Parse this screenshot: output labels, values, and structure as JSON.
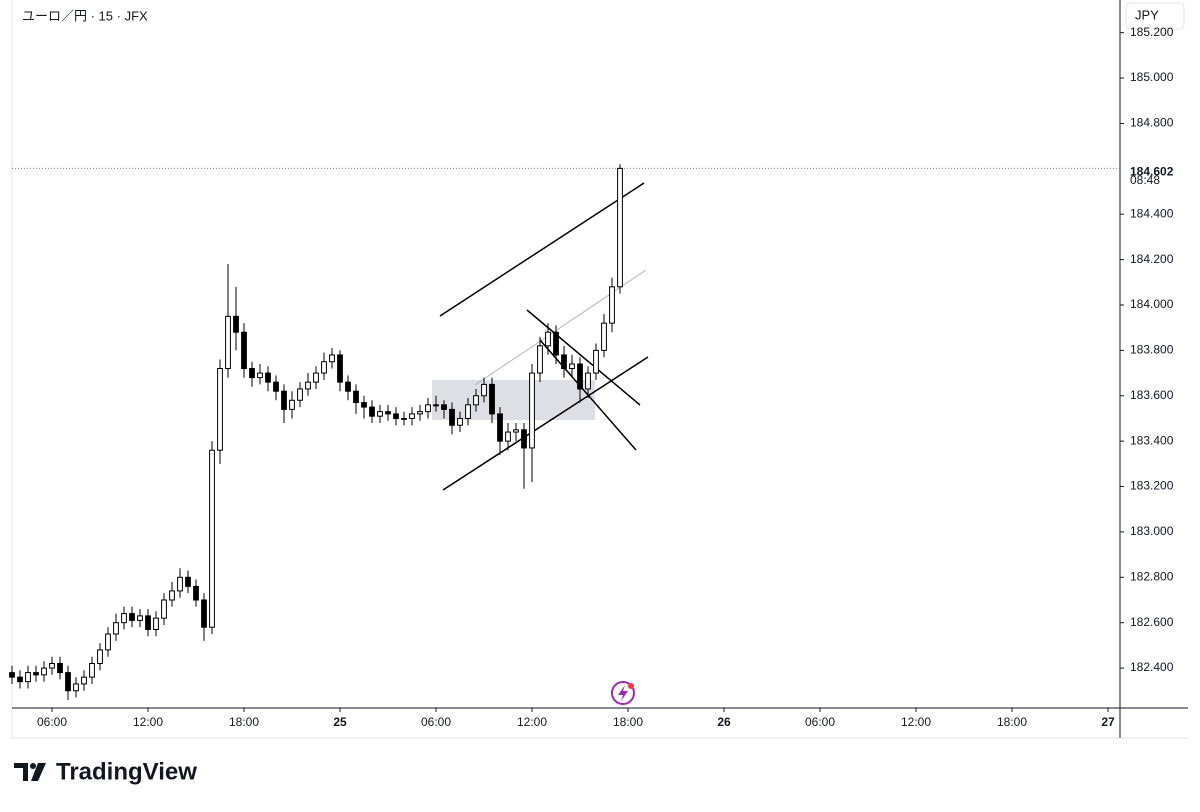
{
  "chart_data": {
    "type": "candlestick",
    "title": "ユーロ／円 · 15 · JFX",
    "currency": "JPY",
    "brand": "TradingView",
    "countdown": "08:48",
    "up_color": "#ffffff",
    "down_color": "#000000",
    "wick_color": "#000000",
    "x": [
      3.5,
      4,
      4.5,
      5,
      5.5,
      6,
      6.5,
      7,
      7.5,
      8,
      8.5,
      9,
      9.5,
      10,
      10.5,
      11,
      11.5,
      12,
      12.5,
      13,
      13.5,
      14,
      14.5,
      15,
      15.5,
      16,
      16.5,
      17,
      17.5,
      18,
      18.5,
      19,
      19.5,
      20,
      20.5,
      21,
      21.5,
      22,
      22.5,
      23,
      23.5,
      24,
      24.5,
      25,
      25.5,
      26,
      26.5,
      27,
      27.5,
      28,
      28.5,
      29,
      29.5,
      30,
      30.5,
      31,
      31.5,
      32,
      32.5,
      33,
      33.5,
      34,
      34.5,
      35,
      35.5,
      36,
      36.5,
      37,
      37.5,
      38,
      38.5,
      39,
      39.5,
      40,
      40.5,
      41,
      41.5
    ],
    "open": [
      182.38,
      182.36,
      182.34,
      182.38,
      182.37,
      182.4,
      182.42,
      182.38,
      182.3,
      182.33,
      182.36,
      182.42,
      182.48,
      182.55,
      182.6,
      182.64,
      182.61,
      182.63,
      182.57,
      182.62,
      182.7,
      182.74,
      182.8,
      182.76,
      182.7,
      182.58,
      183.36,
      183.72,
      183.95,
      183.88,
      183.72,
      183.68,
      183.7,
      183.66,
      183.62,
      183.54,
      183.58,
      183.63,
      183.66,
      183.7,
      183.75,
      183.78,
      183.66,
      183.62,
      183.57,
      183.55,
      183.51,
      183.53,
      183.52,
      183.5,
      183.5,
      183.52,
      183.53,
      183.56,
      183.56,
      183.54,
      183.47,
      183.5,
      183.56,
      183.6,
      183.65,
      183.52,
      183.4,
      183.44,
      183.45,
      183.37,
      183.7,
      183.82,
      183.88,
      183.78,
      183.72,
      183.74,
      183.63,
      183.7,
      183.8,
      183.92,
      184.08
    ],
    "high": [
      182.41,
      182.39,
      182.41,
      182.41,
      182.43,
      182.45,
      182.45,
      182.41,
      182.36,
      182.39,
      182.45,
      182.51,
      182.58,
      182.64,
      182.67,
      182.67,
      182.66,
      182.66,
      182.65,
      182.73,
      182.78,
      182.84,
      182.83,
      182.79,
      182.73,
      183.4,
      183.76,
      184.18,
      184.08,
      183.92,
      183.75,
      183.74,
      183.73,
      183.69,
      183.65,
      183.62,
      183.66,
      183.7,
      183.73,
      183.79,
      183.81,
      183.8,
      183.69,
      183.65,
      183.6,
      183.58,
      183.56,
      183.56,
      183.55,
      183.53,
      183.55,
      183.56,
      183.59,
      183.6,
      183.58,
      183.57,
      183.53,
      183.59,
      183.63,
      183.68,
      183.68,
      183.55,
      183.48,
      183.48,
      183.48,
      183.74,
      183.86,
      183.92,
      183.91,
      183.82,
      183.78,
      183.77,
      183.73,
      183.83,
      183.96,
      184.12,
      184.62
    ],
    "low": [
      182.33,
      182.31,
      182.31,
      182.34,
      182.34,
      182.37,
      182.35,
      182.26,
      182.27,
      182.3,
      182.33,
      182.39,
      182.45,
      182.52,
      182.57,
      182.58,
      182.58,
      182.54,
      182.54,
      182.59,
      182.67,
      182.71,
      182.73,
      182.67,
      182.52,
      182.55,
      183.3,
      183.68,
      183.8,
      183.68,
      183.64,
      183.65,
      183.62,
      183.58,
      183.48,
      183.5,
      183.55,
      183.6,
      183.63,
      183.67,
      183.72,
      183.62,
      183.58,
      183.52,
      183.5,
      183.48,
      183.48,
      183.49,
      183.47,
      183.47,
      183.47,
      183.49,
      183.5,
      183.53,
      183.5,
      183.43,
      183.44,
      183.47,
      183.53,
      183.57,
      183.48,
      183.34,
      183.36,
      183.4,
      183.19,
      183.22,
      183.66,
      183.78,
      183.74,
      183.68,
      183.68,
      183.57,
      183.59,
      183.67,
      183.77,
      183.88,
      184.05
    ],
    "close": [
      182.36,
      182.34,
      182.38,
      182.37,
      182.4,
      182.42,
      182.38,
      182.3,
      182.33,
      182.36,
      182.42,
      182.48,
      182.55,
      182.6,
      182.64,
      182.61,
      182.63,
      182.57,
      182.62,
      182.7,
      182.74,
      182.8,
      182.76,
      182.7,
      182.58,
      183.36,
      183.72,
      183.95,
      183.88,
      183.72,
      183.68,
      183.7,
      183.66,
      183.62,
      183.54,
      183.58,
      183.63,
      183.66,
      183.7,
      183.75,
      183.78,
      183.66,
      183.62,
      183.57,
      183.55,
      183.51,
      183.53,
      183.52,
      183.5,
      183.5,
      183.52,
      183.53,
      183.56,
      183.56,
      183.54,
      183.47,
      183.5,
      183.56,
      183.6,
      183.65,
      183.52,
      183.4,
      183.44,
      183.45,
      183.37,
      183.7,
      183.82,
      183.88,
      183.78,
      183.72,
      183.74,
      183.63,
      183.7,
      183.8,
      183.92,
      184.08,
      184.602
    ],
    "xlim": [
      3.5,
      72.75
    ],
    "xticks": [
      {
        "value": 6,
        "label": "06:00"
      },
      {
        "value": 12,
        "label": "12:00"
      },
      {
        "value": 18,
        "label": "18:00"
      },
      {
        "value": 24,
        "label": "25"
      },
      {
        "value": 30,
        "label": "06:00"
      },
      {
        "value": 36,
        "label": "12:00"
      },
      {
        "value": 42,
        "label": "18:00"
      },
      {
        "value": 48,
        "label": "26"
      },
      {
        "value": 54,
        "label": "06:00"
      },
      {
        "value": 60,
        "label": "12:00"
      },
      {
        "value": 66,
        "label": "18:00"
      },
      {
        "value": 72,
        "label": "27"
      }
    ],
    "ylim": [
      182.224,
      185.344
    ],
    "yticks": [
      {
        "value": 182.4,
        "label": "182.400"
      },
      {
        "value": 182.6,
        "label": "182.600"
      },
      {
        "value": 182.8,
        "label": "182.800"
      },
      {
        "value": 183,
        "label": "183.000"
      },
      {
        "value": 183.2,
        "label": "183.200"
      },
      {
        "value": 183.4,
        "label": "183.400"
      },
      {
        "value": 183.6,
        "label": "183.600"
      },
      {
        "value": 183.8,
        "label": "183.800"
      },
      {
        "value": 184,
        "label": "184.000"
      },
      {
        "value": 184.2,
        "label": "184.200"
      },
      {
        "value": 184.4,
        "label": "184.400"
      },
      {
        "value": 184.8,
        "label": "184.800"
      },
      {
        "value": 185,
        "label": "185.000"
      },
      {
        "value": 185.2,
        "label": "185.200"
      }
    ]
  }
}
